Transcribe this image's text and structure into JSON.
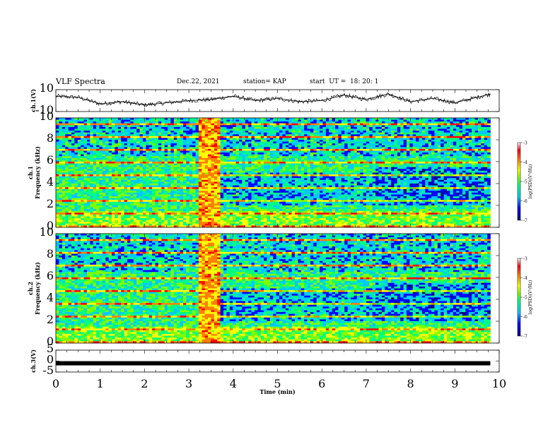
{
  "header": {
    "title": "VLF Spectra",
    "date": "Dec.22, 2021",
    "station": "station= KAP",
    "start": "start  UT =  18: 20: 1"
  },
  "colors": {
    "colorbar": [
      "#00007f",
      "#0000ff",
      "#00c8ff",
      "#00ff80",
      "#80ff00",
      "#ffff00",
      "#ff8000",
      "#ff0000",
      "#ffffff"
    ]
  },
  "chart_data": [
    {
      "type": "line",
      "panel": "ch1-waveform",
      "ylabel": "ch.1(V)",
      "ylim": [
        -10,
        10
      ],
      "yticks": [
        "10",
        "-10"
      ],
      "x": [
        0,
        0.5,
        1,
        1.5,
        2,
        2.5,
        3,
        3.5,
        4,
        4.5,
        5,
        5.5,
        6,
        6.5,
        7,
        7.5,
        8,
        8.5,
        9,
        9.5,
        9.8
      ],
      "y": [
        4,
        3,
        -3,
        -1,
        -4,
        -2,
        0,
        1,
        4,
        0,
        2,
        -1,
        0,
        5,
        1,
        6,
        -1,
        2,
        -2,
        3,
        6
      ],
      "xlim": [
        0,
        10
      ]
    },
    {
      "type": "heatmap",
      "panel": "ch1-spectrogram",
      "ylabel": "Frequency (kHz)",
      "channel_label": "ch.1",
      "ylim": [
        0,
        10
      ],
      "yticks": [
        "0",
        "2",
        "4",
        "6",
        "8",
        "10"
      ],
      "xlim": [
        0,
        10
      ],
      "colorbar": {
        "label": "log(PSD)(V²/Hz)",
        "range": [
          -7,
          -3
        ],
        "ticks": [
          "-3",
          "-4",
          "-5",
          "-6",
          "-7"
        ]
      }
    },
    {
      "type": "heatmap",
      "panel": "ch2-spectrogram",
      "ylabel": "Frequency (kHz)",
      "channel_label": "ch.2",
      "ylim": [
        0,
        10
      ],
      "yticks": [
        "0",
        "2",
        "4",
        "6",
        "8",
        "10"
      ],
      "xlim": [
        0,
        10
      ],
      "colorbar": {
        "label": "log(PSD)(V²/Hz)",
        "range": [
          -7,
          -3
        ],
        "ticks": [
          "-3",
          "-4",
          "-5",
          "-6",
          "-7"
        ]
      }
    },
    {
      "type": "line",
      "panel": "ch3-waveform",
      "ylabel": "ch.3(V)",
      "ylim": [
        -5,
        5
      ],
      "yticks": [
        "5",
        "0",
        "-5"
      ],
      "x": [
        0,
        9.8
      ],
      "y": [
        -1,
        -1
      ],
      "xlim": [
        0,
        10
      ],
      "xlabel": "Time (min)",
      "xticks": [
        "0",
        "1",
        "2",
        "3",
        "4",
        "5",
        "6",
        "7",
        "8",
        "9",
        "10"
      ]
    }
  ]
}
